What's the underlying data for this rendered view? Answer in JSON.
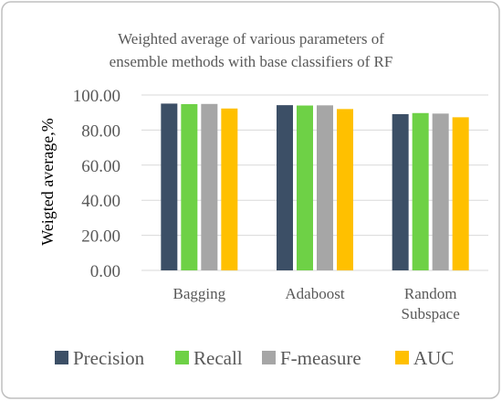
{
  "chart_data": {
    "type": "bar",
    "title": [
      "Weighted average of various parameters of",
      "ensemble methods with base classifiers of RF"
    ],
    "ylabel": "Weigted average,%",
    "xlabel": "",
    "ylim": [
      0,
      100
    ],
    "yticks": [
      "0.00",
      "20.00",
      "40.00",
      "60.00",
      "80.00",
      "100.00"
    ],
    "categories": [
      [
        "Bagging"
      ],
      [
        "Adaboost"
      ],
      [
        "Random",
        "Subspace"
      ]
    ],
    "series": [
      {
        "name": "Precision",
        "color": "#3c4f66",
        "values": [
          95.1,
          94.2,
          89.1
        ]
      },
      {
        "name": "Recall",
        "color": "#6ed146",
        "values": [
          94.8,
          94.0,
          89.7
        ]
      },
      {
        "name": "F-measure",
        "color": "#a6a6a6",
        "values": [
          94.9,
          94.1,
          89.4
        ]
      },
      {
        "name": "AUC",
        "color": "#ffc000",
        "values": [
          92.3,
          92.0,
          87.3
        ]
      }
    ],
    "legend_position": "bottom",
    "grid": true
  }
}
